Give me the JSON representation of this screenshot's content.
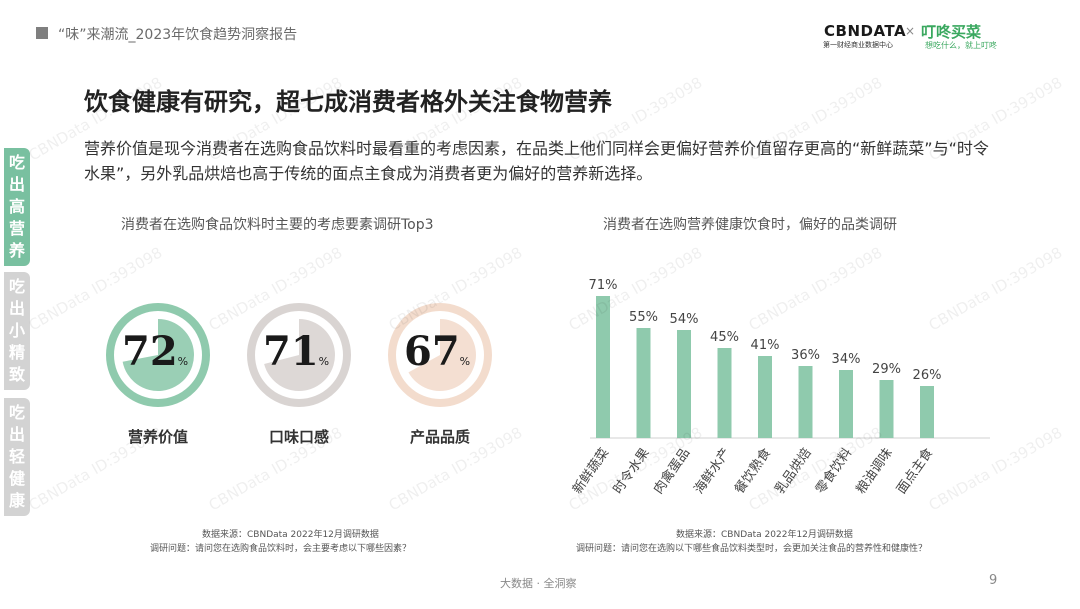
{
  "header": {
    "report_title": "“味”来潮流_2023年饮食趋势洞察报告",
    "logo_cbn": "CBNDATA",
    "logo_cbn_sub": "第一财经商业数据中心",
    "logo_separator": "×",
    "logo_dingdong": "叮咚买菜",
    "logo_dingdong_sub": "想吃什么，就上叮咚"
  },
  "headline": "饮食健康有研究，超七成消费者格外关注食物营养",
  "body_text": "营养价值是现今消费者在选购食品饮料时最看重的考虑因素，在品类上他们同样会更偏好营养价值留存更高的“新鲜蔬菜”与“时令水果”，另外乳品烘焙也高于传统的面点主食成为消费者更为偏好的营养新选择。",
  "side_tabs": [
    {
      "chars": [
        "吃",
        "出",
        "高",
        "营",
        "养"
      ],
      "active": true
    },
    {
      "chars": [
        "吃",
        "出",
        "小",
        "精",
        "致"
      ],
      "active": false
    },
    {
      "chars": [
        "吃",
        "出",
        "轻",
        "健",
        "康"
      ],
      "active": false
    }
  ],
  "left_chart": {
    "title": "消费者在选购食品饮料时主要的考虑要素调研Top3",
    "source": "数据来源：CBNData 2022年12月调研数据",
    "question": "调研问题：请问您在选购食品饮料时，会主要考虑以下哪些因素？"
  },
  "right_chart": {
    "title": "消费者在选购营养健康饮食时，偏好的品类调研",
    "source": "数据来源：CBNData 2022年12月调研数据",
    "question": "调研问题：请问您在选购以下哪些食品饮料类型时，会更加关注食品的营养性和健康性？"
  },
  "chart_data": [
    {
      "type": "pie",
      "title": "消费者在选购食品饮料时主要的考虑要素调研Top3",
      "categories": [
        "营养价值",
        "口味口感",
        "产品品质"
      ],
      "values": [
        72,
        71,
        67
      ],
      "unit": "%",
      "colors": [
        "#8fcaad",
        "#d9d4d2",
        "#f3dccd"
      ],
      "track_color": "#ffffff"
    },
    {
      "type": "bar",
      "title": "消费者在选购营养健康饮食时，偏好的品类调研",
      "categories": [
        "新鲜蔬菜",
        "时令水果",
        "肉禽蛋品",
        "海鲜水产",
        "餐饮熟食",
        "乳品烘焙",
        "零食饮料",
        "粮油调味",
        "面点主食"
      ],
      "values": [
        71,
        55,
        54,
        45,
        41,
        36,
        34,
        29,
        26
      ],
      "unit": "%",
      "color": "#8fcaad",
      "ylim": [
        0,
        80
      ]
    }
  ],
  "footer": {
    "center_text": "大数据 · 全洞察",
    "page_number": "9"
  },
  "watermark_text": "CBNData ID:393098",
  "colors": {
    "accent": "#79c0a0",
    "bar": "#8fcaad",
    "inactive_tab": "#d3d3d3"
  }
}
